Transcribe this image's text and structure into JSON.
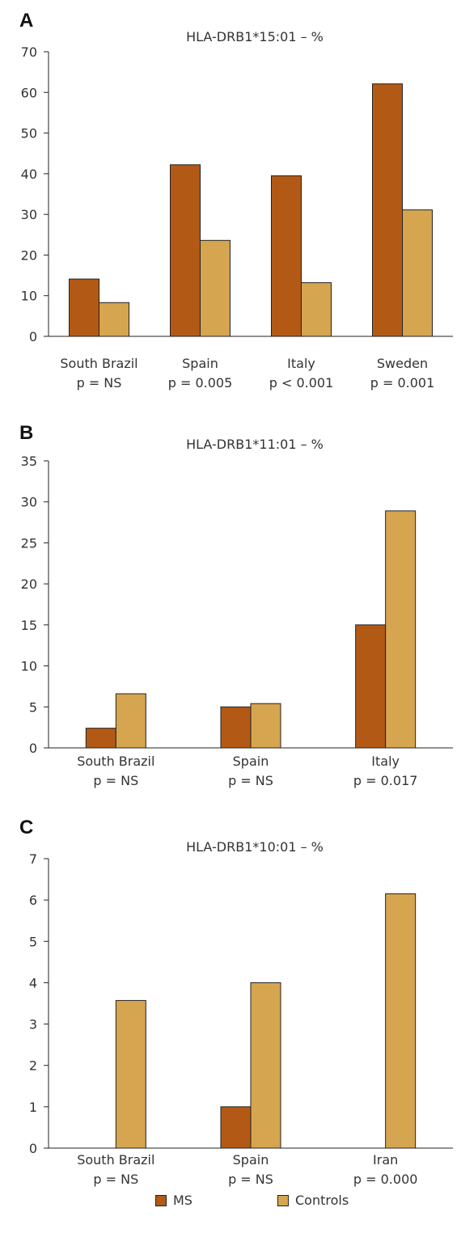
{
  "colors": {
    "ms": "#b35916",
    "controls": "#d6a550",
    "axis": "#222222"
  },
  "chart_data": [
    {
      "type": "bar",
      "panel": "A",
      "title": "HLA-DRB1*15:01 – %",
      "ylim": [
        0,
        70
      ],
      "yticks": [
        0,
        10,
        20,
        30,
        40,
        50,
        60,
        70
      ],
      "categories": [
        "South Brazil",
        "Spain",
        "Italy",
        "Sweden"
      ],
      "pvalues": [
        "p = NS",
        "p = 0.005",
        "p < 0.001",
        "p = 0.001"
      ],
      "series": [
        {
          "name": "MS",
          "values": [
            14.1,
            42.2,
            39.5,
            62.1
          ]
        },
        {
          "name": "Controls",
          "values": [
            8.3,
            23.6,
            13.2,
            31.1
          ]
        }
      ]
    },
    {
      "type": "bar",
      "panel": "B",
      "title": "HLA-DRB1*11:01 – %",
      "ylim": [
        0,
        35
      ],
      "yticks": [
        0,
        5,
        10,
        15,
        20,
        25,
        30,
        35
      ],
      "categories": [
        "South Brazil",
        "Spain",
        "Italy"
      ],
      "pvalues": [
        "p = NS",
        "p = NS",
        "p = 0.017"
      ],
      "series": [
        {
          "name": "MS",
          "values": [
            2.4,
            5.0,
            15.0
          ]
        },
        {
          "name": "Controls",
          "values": [
            6.6,
            5.4,
            28.9
          ]
        }
      ]
    },
    {
      "type": "bar",
      "panel": "C",
      "title": "HLA-DRB1*10:01 – %",
      "ylim": [
        0,
        7
      ],
      "yticks": [
        0,
        1,
        2,
        3,
        4,
        5,
        6,
        7
      ],
      "categories": [
        "South Brazil",
        "Spain",
        "Iran"
      ],
      "pvalues": [
        "p = NS",
        "p = NS",
        "p = 0.000"
      ],
      "series": [
        {
          "name": "MS",
          "values": [
            0,
            1.0,
            0
          ]
        },
        {
          "name": "Controls",
          "values": [
            3.57,
            4.0,
            6.15
          ]
        }
      ]
    }
  ],
  "legend": {
    "ms_label": "MS",
    "controls_label": "Controls"
  }
}
